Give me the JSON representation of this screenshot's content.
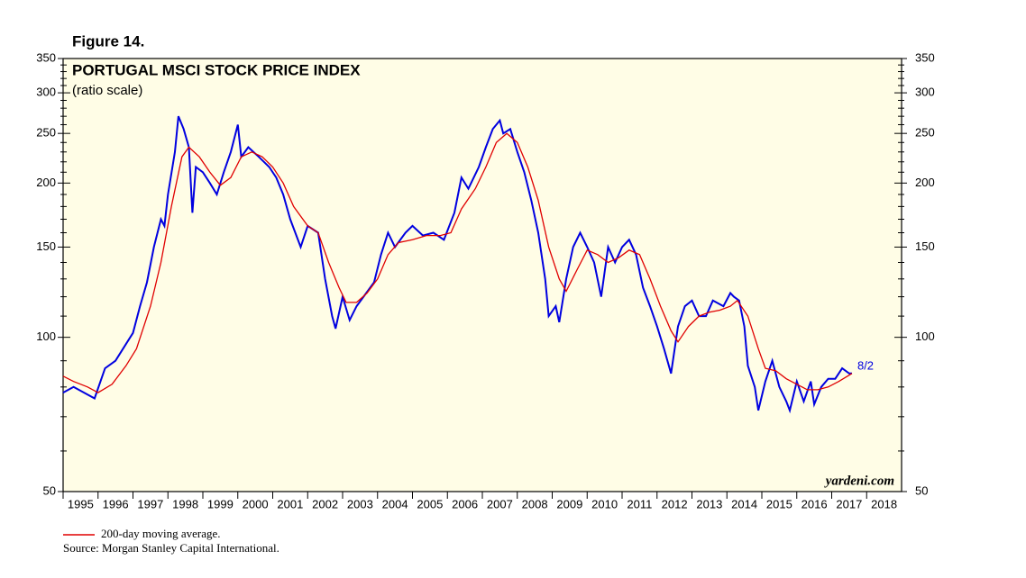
{
  "chart_data": {
    "type": "line",
    "figure_label": "Figure 14.",
    "title": "PORTUGAL MSCI STOCK PRICE INDEX",
    "subtitle": "(ratio scale)",
    "end_label": "8/2",
    "watermark": "yardeni.com",
    "legend_note": "200-day moving average.",
    "source": "Source: Morgan Stanley Capital International.",
    "log_scale": true,
    "xlim": [
      1995,
      2019
    ],
    "xticks": [
      1995,
      1996,
      1997,
      1998,
      1999,
      2000,
      2001,
      2002,
      2003,
      2004,
      2005,
      2006,
      2007,
      2008,
      2009,
      2010,
      2011,
      2012,
      2013,
      2014,
      2015,
      2016,
      2017,
      2018
    ],
    "ylim": [
      50,
      350
    ],
    "yticks": [
      50,
      100,
      150,
      200,
      250,
      300,
      350
    ],
    "minor_yticks": [
      60,
      70,
      80,
      90,
      110,
      120,
      130,
      140,
      160,
      170,
      180,
      190,
      210,
      220,
      230,
      240,
      260,
      270,
      280,
      290,
      310,
      320,
      330,
      340
    ],
    "series": [
      {
        "name": "Portugal MSCI",
        "color": "#0000e0",
        "x": [
          1995.0,
          1995.3,
          1995.6,
          1995.9,
          1996.2,
          1996.5,
          1996.8,
          1997.0,
          1997.2,
          1997.4,
          1997.6,
          1997.8,
          1997.9,
          1998.0,
          1998.2,
          1998.3,
          1998.45,
          1998.6,
          1998.7,
          1998.8,
          1999.0,
          1999.2,
          1999.4,
          1999.6,
          1999.8,
          2000.0,
          2000.1,
          2000.3,
          2000.6,
          2000.9,
          2001.1,
          2001.3,
          2001.5,
          2001.8,
          2002.0,
          2002.3,
          2002.5,
          2002.7,
          2002.8,
          2003.0,
          2003.2,
          2003.4,
          2003.6,
          2003.9,
          2004.1,
          2004.3,
          2004.5,
          2004.8,
          2005.0,
          2005.3,
          2005.6,
          2005.9,
          2006.2,
          2006.4,
          2006.6,
          2006.9,
          2007.1,
          2007.3,
          2007.5,
          2007.6,
          2007.8,
          2008.0,
          2008.2,
          2008.4,
          2008.6,
          2008.8,
          2008.9,
          2009.1,
          2009.2,
          2009.4,
          2009.6,
          2009.8,
          2010.0,
          2010.2,
          2010.4,
          2010.6,
          2010.8,
          2011.0,
          2011.2,
          2011.4,
          2011.6,
          2011.8,
          2012.0,
          2012.2,
          2012.4,
          2012.6,
          2012.8,
          2013.0,
          2013.2,
          2013.4,
          2013.6,
          2013.9,
          2014.1,
          2014.2,
          2014.35,
          2014.5,
          2014.6,
          2014.8,
          2014.9,
          2015.1,
          2015.3,
          2015.5,
          2015.7,
          2015.8,
          2016.0,
          2016.2,
          2016.4,
          2016.5,
          2016.7,
          2016.9,
          2017.1,
          2017.3,
          2017.5,
          2017.58
        ],
        "values": [
          78,
          80,
          78,
          76,
          87,
          90,
          97,
          102,
          115,
          128,
          150,
          170,
          165,
          190,
          230,
          270,
          255,
          235,
          175,
          215,
          210,
          200,
          190,
          210,
          230,
          260,
          225,
          235,
          225,
          215,
          205,
          190,
          170,
          150,
          165,
          160,
          130,
          110,
          104,
          120,
          108,
          115,
          120,
          128,
          145,
          160,
          150,
          160,
          165,
          158,
          160,
          155,
          175,
          205,
          195,
          215,
          235,
          255,
          265,
          250,
          255,
          230,
          210,
          185,
          160,
          130,
          110,
          115,
          107,
          130,
          150,
          160,
          150,
          140,
          120,
          150,
          140,
          150,
          155,
          145,
          125,
          115,
          105,
          95,
          85,
          105,
          115,
          118,
          110,
          110,
          118,
          115,
          122,
          120,
          118,
          105,
          88,
          80,
          72,
          82,
          90,
          80,
          75,
          72,
          82,
          75,
          82,
          74,
          80,
          83,
          83,
          87,
          85,
          85
        ]
      },
      {
        "name": "200-day moving average",
        "color": "#e00000",
        "x": [
          1995.0,
          1995.3,
          1995.7,
          1996.0,
          1996.4,
          1996.8,
          1997.1,
          1997.5,
          1997.8,
          1998.1,
          1998.4,
          1998.6,
          1998.9,
          1999.2,
          1999.5,
          1999.8,
          2000.1,
          2000.4,
          2000.7,
          2001.0,
          2001.3,
          2001.6,
          2002.0,
          2002.3,
          2002.6,
          2002.9,
          2003.1,
          2003.4,
          2003.7,
          2004.0,
          2004.3,
          2004.6,
          2005.0,
          2005.4,
          2005.8,
          2006.1,
          2006.4,
          2006.8,
          2007.1,
          2007.4,
          2007.7,
          2008.0,
          2008.3,
          2008.6,
          2008.9,
          2009.2,
          2009.4,
          2009.7,
          2010.0,
          2010.3,
          2010.6,
          2010.9,
          2011.2,
          2011.5,
          2011.8,
          2012.1,
          2012.4,
          2012.6,
          2012.9,
          2013.2,
          2013.5,
          2013.8,
          2014.1,
          2014.3,
          2014.6,
          2014.9,
          2015.1,
          2015.4,
          2015.7,
          2016.0,
          2016.3,
          2016.6,
          2016.9,
          2017.2,
          2017.58
        ],
        "values": [
          84,
          82,
          80,
          78,
          81,
          88,
          95,
          115,
          140,
          180,
          225,
          235,
          225,
          210,
          198,
          205,
          225,
          230,
          225,
          215,
          200,
          180,
          165,
          160,
          140,
          125,
          117,
          117,
          122,
          130,
          145,
          153,
          155,
          158,
          158,
          160,
          178,
          195,
          215,
          240,
          250,
          240,
          215,
          185,
          150,
          130,
          123,
          135,
          148,
          145,
          140,
          143,
          148,
          145,
          130,
          115,
          103,
          98,
          105,
          110,
          112,
          113,
          115,
          118,
          110,
          95,
          87,
          86,
          83,
          81,
          79,
          79,
          80,
          82,
          85
        ]
      }
    ]
  }
}
